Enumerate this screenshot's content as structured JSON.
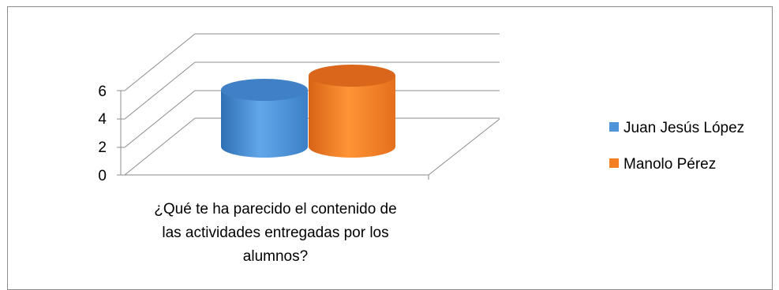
{
  "chart_data": {
    "type": "bar",
    "style": "3d-cylinder",
    "categories": [
      "¿Qué te ha parecido el contenido de las actividades entregadas por los alumnos?"
    ],
    "category_label_lines": [
      "¿Qué te ha parecido el contenido de",
      "las actividades entregadas por los",
      "alumnos?"
    ],
    "series": [
      {
        "name": "Juan Jesús López",
        "values": [
          4
        ],
        "color": "#4f93d8"
      },
      {
        "name": "Manolo Pérez",
        "values": [
          5
        ],
        "color": "#f47f22"
      }
    ],
    "yticks": [
      "0",
      "2",
      "4",
      "6"
    ],
    "ylim": [
      0,
      6
    ],
    "grid": true,
    "legend_position": "right"
  }
}
